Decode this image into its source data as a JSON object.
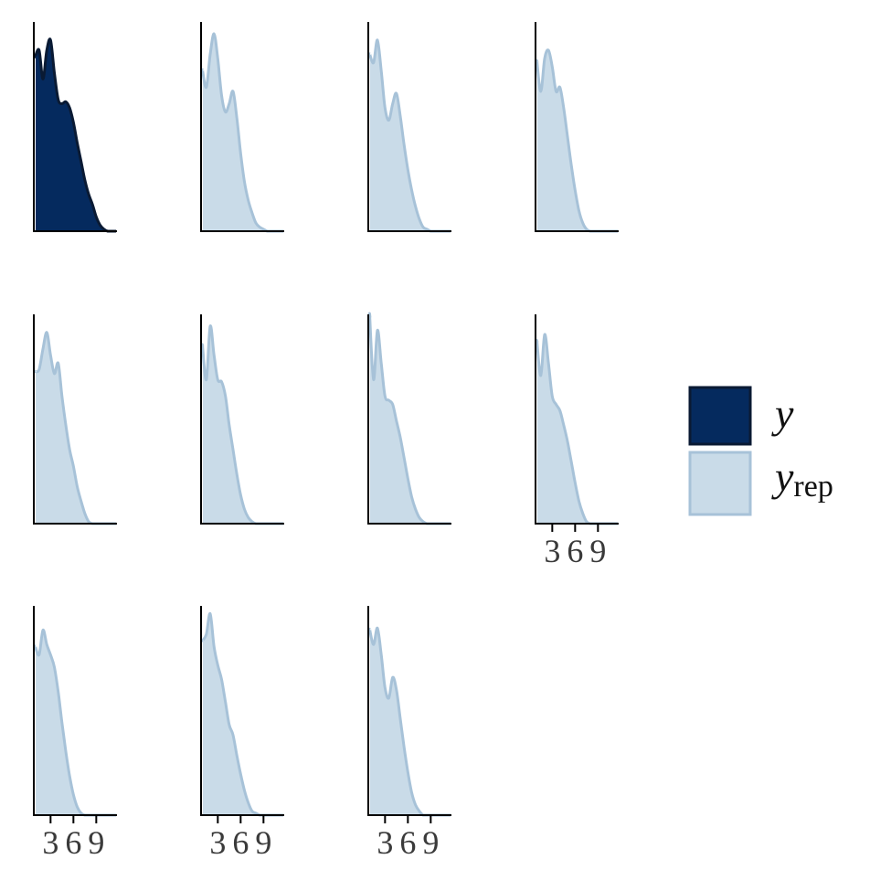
{
  "chart_data": {
    "type": "area",
    "layout": "facet-grid",
    "facet_columns": 4,
    "xlim": [
      0.8,
      11.6
    ],
    "x_ticks": [
      3,
      6,
      9
    ],
    "x_tick_labels": [
      "3",
      "6",
      "9"
    ],
    "ylim": [
      0,
      1
    ],
    "grid": false,
    "legend_position": "right",
    "legend": [
      {
        "key": "y",
        "label": "y",
        "subscript": "",
        "fill": "#052a5e",
        "stroke": "#0a1a33"
      },
      {
        "key": "yrep",
        "label": "y",
        "subscript": "rep",
        "fill": "#c9dbe8",
        "stroke": "#a7c2d8"
      }
    ],
    "x": [
      1,
      1.5,
      2,
      2.5,
      3,
      3.5,
      4,
      4.5,
      5,
      5.5,
      6,
      6.5,
      7,
      7.5,
      8,
      8.5,
      9,
      9.5,
      10,
      10.5,
      11
    ],
    "panels": [
      {
        "series": "y",
        "show_ticks": false,
        "density": [
          0.85,
          0.88,
          0.74,
          0.88,
          0.93,
          0.77,
          0.64,
          0.62,
          0.63,
          0.6,
          0.53,
          0.43,
          0.34,
          0.25,
          0.18,
          0.13,
          0.07,
          0.03,
          0.01,
          0,
          0
        ]
      },
      {
        "series": "yrep",
        "show_ticks": false,
        "density": [
          0.78,
          0.7,
          0.86,
          0.96,
          0.84,
          0.66,
          0.58,
          0.62,
          0.68,
          0.55,
          0.38,
          0.24,
          0.15,
          0.09,
          0.04,
          0.02,
          0.01,
          0,
          0,
          0,
          0
        ]
      },
      {
        "series": "yrep",
        "show_ticks": false,
        "density": [
          0.86,
          0.82,
          0.93,
          0.78,
          0.6,
          0.54,
          0.62,
          0.67,
          0.56,
          0.42,
          0.3,
          0.2,
          0.12,
          0.06,
          0.02,
          0.01,
          0,
          0,
          0,
          0,
          0
        ]
      },
      {
        "series": "yrep",
        "show_ticks": false,
        "density": [
          0.82,
          0.68,
          0.84,
          0.88,
          0.8,
          0.68,
          0.7,
          0.6,
          0.46,
          0.32,
          0.2,
          0.1,
          0.04,
          0.01,
          0,
          0,
          0,
          0,
          0,
          0,
          0
        ]
      },
      {
        "series": "yrep",
        "show_ticks": false,
        "density": [
          0.74,
          0.75,
          0.85,
          0.93,
          0.82,
          0.73,
          0.78,
          0.62,
          0.48,
          0.36,
          0.28,
          0.18,
          0.11,
          0.05,
          0.01,
          0,
          0,
          0,
          0,
          0,
          0
        ]
      },
      {
        "series": "yrep",
        "show_ticks": false,
        "density": [
          0.86,
          0.7,
          0.96,
          0.82,
          0.7,
          0.69,
          0.62,
          0.48,
          0.36,
          0.24,
          0.14,
          0.07,
          0.03,
          0.01,
          0,
          0,
          0,
          0,
          0,
          0,
          0
        ]
      },
      {
        "series": "yrep",
        "show_ticks": false,
        "density": [
          1.0,
          0.7,
          0.94,
          0.78,
          0.62,
          0.6,
          0.58,
          0.5,
          0.42,
          0.32,
          0.22,
          0.13,
          0.07,
          0.03,
          0.01,
          0,
          0,
          0,
          0,
          0,
          0
        ]
      },
      {
        "series": "yrep",
        "show_ticks": true,
        "density": [
          0.88,
          0.72,
          0.92,
          0.78,
          0.62,
          0.58,
          0.55,
          0.48,
          0.4,
          0.3,
          0.2,
          0.11,
          0.05,
          0.01,
          0,
          0,
          0,
          0,
          0,
          0,
          0
        ]
      },
      {
        "series": "yrep",
        "show_ticks": true,
        "density": [
          0.82,
          0.78,
          0.9,
          0.83,
          0.78,
          0.72,
          0.6,
          0.45,
          0.31,
          0.19,
          0.1,
          0.04,
          0.01,
          0,
          0,
          0,
          0,
          0,
          0,
          0,
          0
        ]
      },
      {
        "series": "yrep",
        "show_ticks": true,
        "density": [
          0.85,
          0.88,
          0.98,
          0.82,
          0.73,
          0.66,
          0.55,
          0.44,
          0.39,
          0.29,
          0.2,
          0.12,
          0.06,
          0.02,
          0.01,
          0,
          0,
          0,
          0,
          0,
          0
        ]
      },
      {
        "series": "yrep",
        "show_ticks": true,
        "density": [
          0.9,
          0.83,
          0.91,
          0.78,
          0.62,
          0.57,
          0.67,
          0.61,
          0.47,
          0.33,
          0.21,
          0.11,
          0.05,
          0.02,
          0,
          0,
          0,
          0,
          0,
          0,
          0
        ]
      }
    ]
  }
}
